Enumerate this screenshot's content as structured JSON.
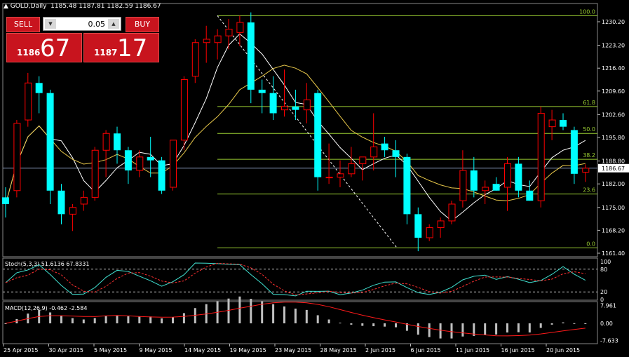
{
  "header": {
    "title": "GOLD,Daily",
    "ohlc": "1185.48 1187.81 1182.59 1186.67"
  },
  "trade_panel": {
    "sell_label": "SELL",
    "buy_label": "BUY",
    "lot_value": "0.05",
    "sell_small": "1186",
    "sell_big": "67",
    "buy_small": "1187",
    "buy_big": "17"
  },
  "price_axis": {
    "ticks": [
      "1230.20",
      "1223.20",
      "1216.40",
      "1209.60",
      "1202.60",
      "1195.80",
      "1188.80",
      "1182.00",
      "1175.00",
      "1168.20",
      "1161.40"
    ],
    "current_price": "1186.67"
  },
  "fibonacci": {
    "levels": [
      {
        "label": "100.0",
        "price": 1232.0
      },
      {
        "label": "61.8",
        "price": 1205.0
      },
      {
        "label": "50.0",
        "price": 1197.0
      },
      {
        "label": "38.2",
        "price": 1189.3
      },
      {
        "label": "23.6",
        "price": 1179.0
      },
      {
        "label": "0.0",
        "price": 1163.0
      }
    ]
  },
  "stoch": {
    "label": "Stoch(5,3,3) 51.6136 67.8331",
    "ticks": [
      "100",
      "80",
      "20",
      "0"
    ]
  },
  "macd": {
    "label": "MACD(12,26,9) -0.462 -2.584",
    "ticks": [
      "7.961",
      "0.00",
      "-7.633"
    ]
  },
  "time_axis": [
    "25 Apr 2015",
    "30 Apr 2015",
    "5 May 2015",
    "9 May 2015",
    "14 May 2015",
    "19 May 2015",
    "23 May 2015",
    "28 May 2015",
    "2 Jun 2015",
    "6 Jun 2015",
    "11 Jun 2015",
    "16 Jun 2015",
    "20 Jun 2015"
  ],
  "colors": {
    "bull": "#ff0000",
    "bear": "#00ffff",
    "fib": "#9acd32",
    "ma_fast": "#ffffff",
    "ma_slow": "#e8c84a",
    "stoch_main": "#40e0d0",
    "stoch_signal": "#ff3030",
    "macd_hist": "#c0c0c0",
    "macd_signal": "#ff1a1a"
  },
  "chart_data": {
    "type": "candlestick",
    "candles": [
      {
        "o": 1178,
        "h": 1181,
        "l": 1172,
        "c": 1176
      },
      {
        "o": 1180,
        "h": 1201,
        "l": 1178,
        "c": 1200
      },
      {
        "o": 1201,
        "h": 1215,
        "l": 1199,
        "c": 1212
      },
      {
        "o": 1212,
        "h": 1214,
        "l": 1203,
        "c": 1209
      },
      {
        "o": 1209,
        "h": 1210,
        "l": 1176,
        "c": 1180
      },
      {
        "o": 1180,
        "h": 1182,
        "l": 1170,
        "c": 1173
      },
      {
        "o": 1173,
        "h": 1176,
        "l": 1168,
        "c": 1175
      },
      {
        "o": 1176,
        "h": 1180,
        "l": 1174,
        "c": 1178
      },
      {
        "o": 1178,
        "h": 1193,
        "l": 1177,
        "c": 1192
      },
      {
        "o": 1192,
        "h": 1198,
        "l": 1184,
        "c": 1197
      },
      {
        "o": 1197,
        "h": 1199,
        "l": 1188,
        "c": 1192
      },
      {
        "o": 1192,
        "h": 1193,
        "l": 1182,
        "c": 1186
      },
      {
        "o": 1186,
        "h": 1192,
        "l": 1184,
        "c": 1190
      },
      {
        "o": 1190,
        "h": 1196,
        "l": 1184,
        "c": 1189
      },
      {
        "o": 1189,
        "h": 1190,
        "l": 1179,
        "c": 1180
      },
      {
        "o": 1181,
        "h": 1195,
        "l": 1180,
        "c": 1195
      },
      {
        "o": 1195,
        "h": 1214,
        "l": 1192,
        "c": 1213
      },
      {
        "o": 1214,
        "h": 1225,
        "l": 1212,
        "c": 1224
      },
      {
        "o": 1224,
        "h": 1229,
        "l": 1218,
        "c": 1225
      },
      {
        "o": 1224,
        "h": 1228,
        "l": 1219,
        "c": 1226
      },
      {
        "o": 1226,
        "h": 1231,
        "l": 1222,
        "c": 1228
      },
      {
        "o": 1227,
        "h": 1232,
        "l": 1223,
        "c": 1230
      },
      {
        "o": 1230,
        "h": 1233,
        "l": 1206,
        "c": 1210
      },
      {
        "o": 1210,
        "h": 1213,
        "l": 1203,
        "c": 1209
      },
      {
        "o": 1209,
        "h": 1214,
        "l": 1201,
        "c": 1203
      },
      {
        "o": 1204,
        "h": 1216,
        "l": 1202,
        "c": 1205
      },
      {
        "o": 1205,
        "h": 1210,
        "l": 1201,
        "c": 1204
      },
      {
        "o": 1204,
        "h": 1212,
        "l": 1200,
        "c": 1207
      },
      {
        "o": 1209,
        "h": 1210,
        "l": 1180,
        "c": 1184
      },
      {
        "o": 1184,
        "h": 1194,
        "l": 1182,
        "c": 1184
      },
      {
        "o": 1184,
        "h": 1189,
        "l": 1181,
        "c": 1185
      },
      {
        "o": 1185,
        "h": 1193,
        "l": 1184,
        "c": 1188
      },
      {
        "o": 1188,
        "h": 1190,
        "l": 1183,
        "c": 1190
      },
      {
        "o": 1190,
        "h": 1203,
        "l": 1186,
        "c": 1193
      },
      {
        "o": 1194,
        "h": 1196,
        "l": 1190,
        "c": 1192
      },
      {
        "o": 1192,
        "h": 1195,
        "l": 1184,
        "c": 1190
      },
      {
        "o": 1190,
        "h": 1191,
        "l": 1170,
        "c": 1173
      },
      {
        "o": 1173,
        "h": 1175,
        "l": 1162,
        "c": 1166
      },
      {
        "o": 1166,
        "h": 1170,
        "l": 1165,
        "c": 1169
      },
      {
        "o": 1169,
        "h": 1172,
        "l": 1166,
        "c": 1171
      },
      {
        "o": 1171,
        "h": 1177,
        "l": 1170,
        "c": 1176
      },
      {
        "o": 1177,
        "h": 1192,
        "l": 1175,
        "c": 1186
      },
      {
        "o": 1186,
        "h": 1190,
        "l": 1178,
        "c": 1180
      },
      {
        "o": 1180,
        "h": 1183,
        "l": 1176,
        "c": 1181
      },
      {
        "o": 1182,
        "h": 1184,
        "l": 1180,
        "c": 1180
      },
      {
        "o": 1181,
        "h": 1190,
        "l": 1174,
        "c": 1188
      },
      {
        "o": 1188,
        "h": 1190,
        "l": 1178,
        "c": 1180
      },
      {
        "o": 1180,
        "h": 1183,
        "l": 1177,
        "c": 1177
      },
      {
        "o": 1177,
        "h": 1205,
        "l": 1175,
        "c": 1203
      },
      {
        "o": 1199,
        "h": 1204,
        "l": 1195,
        "c": 1201
      },
      {
        "o": 1201,
        "h": 1203,
        "l": 1198,
        "c": 1199
      },
      {
        "o": 1198,
        "h": 1199,
        "l": 1182,
        "c": 1185
      },
      {
        "o": 1185.48,
        "h": 1187.81,
        "l": 1182.59,
        "c": 1186.67
      }
    ]
  }
}
